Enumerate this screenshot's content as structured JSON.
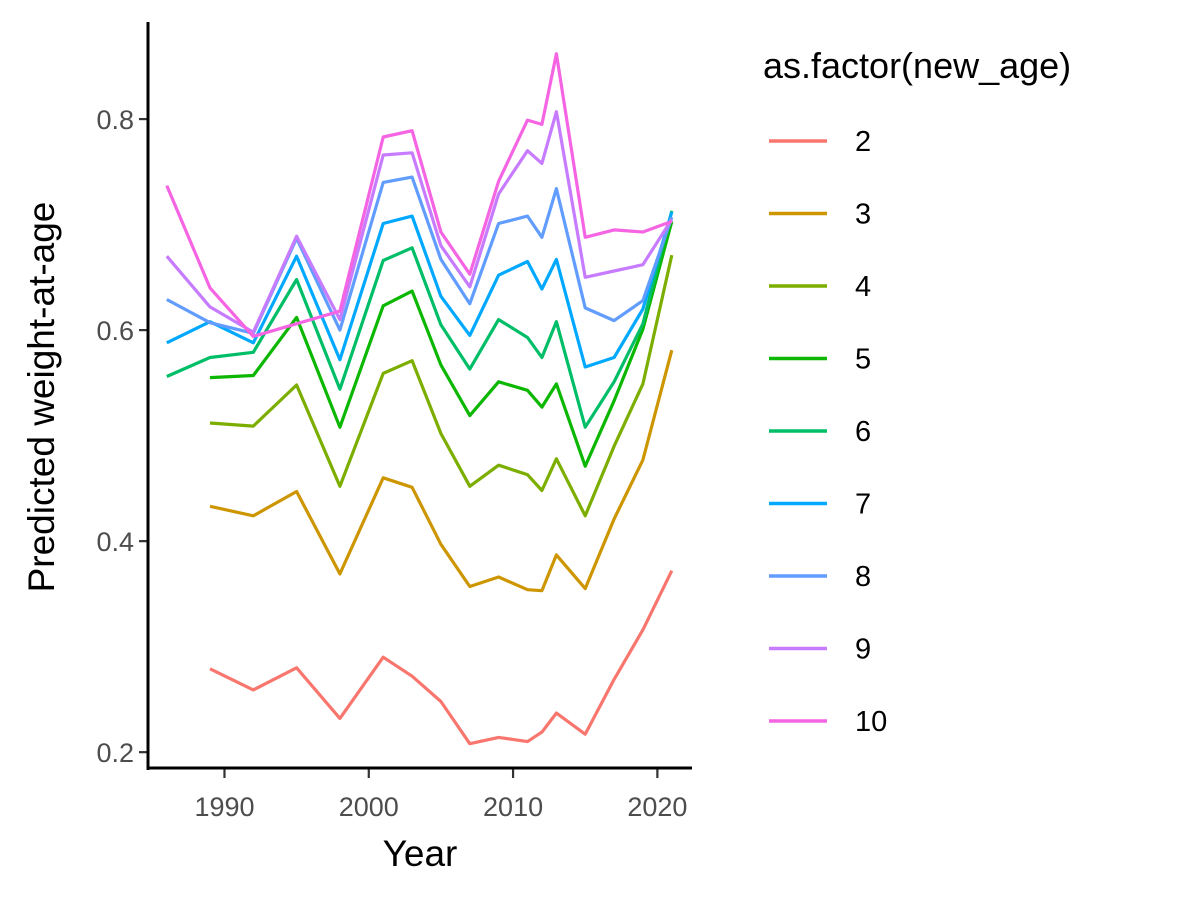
{
  "chart_data": {
    "type": "line",
    "xlabel": "Year",
    "ylabel": "Predicted weight-at-age",
    "legend_title": "as.factor(new_age)",
    "legend_position": "right",
    "grid": false,
    "xlim": [
      1984.7,
      2022.4
    ],
    "ylim": [
      0.185,
      0.892
    ],
    "x_ticks": [
      1990,
      2000,
      2010,
      2020
    ],
    "y_ticks": [
      0.2,
      0.4,
      0.6,
      0.8
    ],
    "x_tick_labels": [
      "1990",
      "2000",
      "2010",
      "2020"
    ],
    "y_tick_labels": [
      "0.2",
      "0.4",
      "0.6",
      "0.8"
    ],
    "series": [
      {
        "name": "2",
        "color": "#F8766D",
        "x": [
          1989,
          1992,
          1995,
          1998,
          2001,
          2003,
          2005,
          2007,
          2009,
          2011,
          2012,
          2013,
          2015,
          2017,
          2019,
          2021
        ],
        "y": [
          0.279,
          0.259,
          0.28,
          0.232,
          0.29,
          0.272,
          0.248,
          0.208,
          0.214,
          0.21,
          0.219,
          0.237,
          0.217,
          0.269,
          0.316,
          0.372
        ]
      },
      {
        "name": "3",
        "color": "#CD9600",
        "x": [
          1989,
          1992,
          1995,
          1998,
          2001,
          2003,
          2005,
          2007,
          2009,
          2011,
          2012,
          2013,
          2015,
          2017,
          2019,
          2021
        ],
        "y": [
          0.433,
          0.424,
          0.447,
          0.369,
          0.46,
          0.451,
          0.397,
          0.357,
          0.366,
          0.354,
          0.353,
          0.387,
          0.355,
          0.421,
          0.477,
          0.581
        ]
      },
      {
        "name": "4",
        "color": "#7CAE00",
        "x": [
          1989,
          1992,
          1995,
          1998,
          2001,
          2003,
          2005,
          2007,
          2009,
          2011,
          2012,
          2013,
          2015,
          2017,
          2019,
          2021
        ],
        "y": [
          0.512,
          0.509,
          0.548,
          0.452,
          0.559,
          0.571,
          0.502,
          0.452,
          0.472,
          0.463,
          0.448,
          0.478,
          0.424,
          0.49,
          0.549,
          0.671
        ]
      },
      {
        "name": "5",
        "color": "#0CB702",
        "x": [
          1989,
          1992,
          1995,
          1998,
          2001,
          2003,
          2005,
          2007,
          2009,
          2011,
          2012,
          2013,
          2015,
          2017,
          2019,
          2021
        ],
        "y": [
          0.555,
          0.557,
          0.612,
          0.508,
          0.623,
          0.637,
          0.567,
          0.519,
          0.551,
          0.543,
          0.527,
          0.549,
          0.471,
          0.533,
          0.601,
          0.703
        ]
      },
      {
        "name": "6",
        "color": "#00BE67",
        "x": [
          1986,
          1989,
          1992,
          1995,
          1998,
          2001,
          2003,
          2005,
          2007,
          2009,
          2011,
          2012,
          2013,
          2015,
          2017,
          2019,
          2021
        ],
        "y": [
          0.556,
          0.574,
          0.579,
          0.648,
          0.544,
          0.666,
          0.678,
          0.605,
          0.563,
          0.61,
          0.593,
          0.574,
          0.608,
          0.508,
          0.551,
          0.606,
          0.713
        ]
      },
      {
        "name": "7",
        "color": "#00A9FF",
        "x": [
          1986,
          1989,
          1992,
          1995,
          1998,
          2001,
          2003,
          2005,
          2007,
          2009,
          2011,
          2012,
          2013,
          2015,
          2017,
          2019,
          2021
        ],
        "y": [
          0.588,
          0.608,
          0.588,
          0.67,
          0.572,
          0.701,
          0.708,
          0.632,
          0.595,
          0.652,
          0.665,
          0.639,
          0.667,
          0.565,
          0.574,
          0.62,
          0.712
        ]
      },
      {
        "name": "8",
        "color": "#619CFF",
        "x": [
          1986,
          1989,
          1992,
          1995,
          1998,
          2001,
          2003,
          2005,
          2007,
          2009,
          2011,
          2012,
          2013,
          2015,
          2017,
          2019,
          2021
        ],
        "y": [
          0.629,
          0.607,
          0.597,
          0.687,
          0.6,
          0.74,
          0.745,
          0.667,
          0.625,
          0.701,
          0.708,
          0.688,
          0.734,
          0.621,
          0.609,
          0.628,
          0.707
        ]
      },
      {
        "name": "9",
        "color": "#C77CFF",
        "x": [
          1986,
          1989,
          1992,
          1995,
          1998,
          2001,
          2003,
          2005,
          2007,
          2009,
          2011,
          2012,
          2013,
          2015,
          2017,
          2019,
          2021
        ],
        "y": [
          0.67,
          0.622,
          0.598,
          0.689,
          0.61,
          0.766,
          0.768,
          0.68,
          0.641,
          0.729,
          0.77,
          0.758,
          0.807,
          0.65,
          0.656,
          0.662,
          0.705
        ]
      },
      {
        "name": "10",
        "color": "#F564E3",
        "x": [
          1986,
          1989,
          1992,
          1998,
          2001,
          2003,
          2005,
          2007,
          2009,
          2011,
          2012,
          2013,
          2015,
          2017,
          2019,
          2021
        ],
        "y": [
          0.737,
          0.64,
          0.594,
          0.618,
          0.783,
          0.789,
          0.693,
          0.653,
          0.741,
          0.799,
          0.795,
          0.862,
          0.688,
          0.695,
          0.693,
          0.703
        ]
      }
    ]
  }
}
